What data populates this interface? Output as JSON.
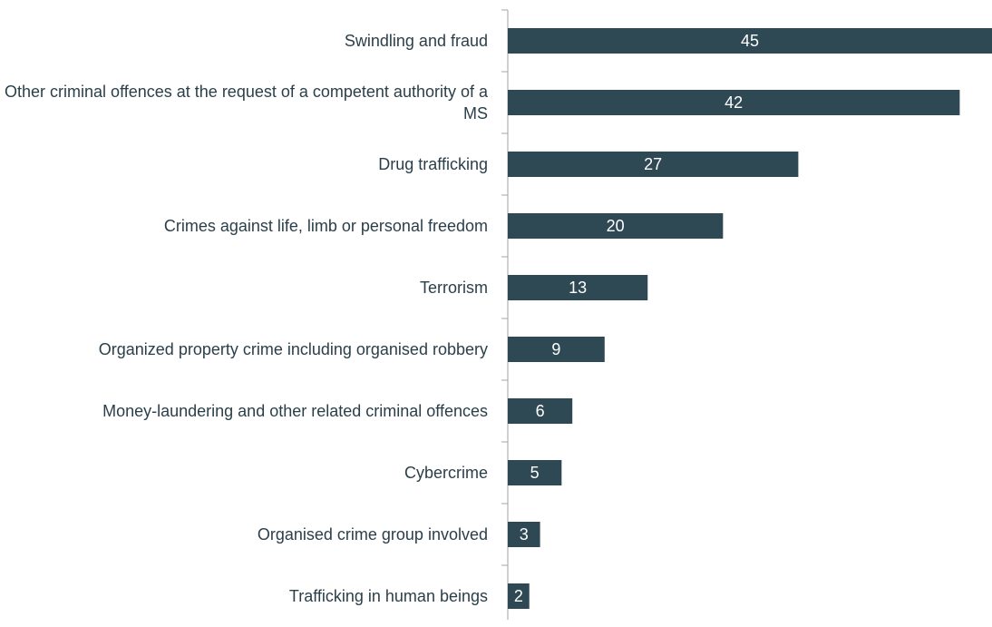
{
  "chart_data": {
    "type": "bar",
    "orientation": "horizontal",
    "categories": [
      "Swindling and fraud",
      "Other criminal offences at the request of a competent authority of a MS",
      "Drug trafficking",
      "Crimes against life, limb or personal freedom",
      "Terrorism",
      "Organized property crime including organised robbery",
      "Money-laundering and other related criminal offences",
      "Cybercrime",
      "Organised crime group involved",
      "Trafficking in human beings"
    ],
    "values": [
      45,
      42,
      27,
      20,
      13,
      9,
      6,
      5,
      3,
      2
    ],
    "color": "#2e4854"
  }
}
